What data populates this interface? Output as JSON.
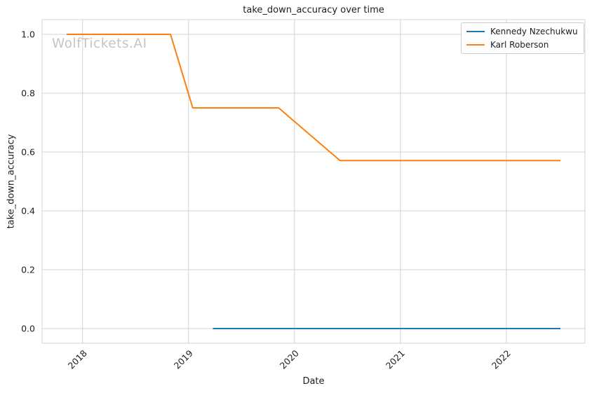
{
  "figure": {
    "watermark": "WolfTickets.AI"
  },
  "chart_data": {
    "type": "line",
    "title": "take_down_accuracy over time",
    "xlabel": "Date",
    "ylabel": "take_down_accuracy",
    "xlim": [
      2017.618,
      2022.742
    ],
    "ylim": [
      -0.05,
      1.05
    ],
    "grid": true,
    "legend_position": "upper-right",
    "x_ticks": {
      "values": [
        2018,
        2019,
        2020,
        2021,
        2022
      ],
      "labels": [
        "2018",
        "2019",
        "2020",
        "2021",
        "2022"
      ]
    },
    "y_ticks": {
      "values": [
        0.0,
        0.2,
        0.4,
        0.6,
        0.8,
        1.0
      ],
      "labels": [
        "0.0",
        "0.2",
        "0.4",
        "0.6",
        "0.8",
        "1.0"
      ]
    },
    "series": [
      {
        "name": "Kennedy Nzechukwu",
        "color": "#1f77b4",
        "points": [
          [
            2019.23,
            0.0
          ],
          [
            2022.51,
            0.0
          ]
        ]
      },
      {
        "name": "Karl Roberson",
        "color": "#ff7f0e",
        "points": [
          [
            2017.85,
            1.0
          ],
          [
            2018.83,
            1.0
          ],
          [
            2019.04,
            0.75
          ],
          [
            2019.85,
            0.75
          ],
          [
            2020.43,
            0.571
          ],
          [
            2022.51,
            0.571
          ]
        ]
      }
    ]
  },
  "colors": {
    "background": "#ffffff",
    "grid": "#d3d3d3",
    "axes_border": "#d3d3d3",
    "text": "#202020",
    "watermark": "#c5c5c5",
    "legend_border": "#cccccc",
    "series_blue": "#1f77b4",
    "series_orange": "#ff7f0e"
  }
}
